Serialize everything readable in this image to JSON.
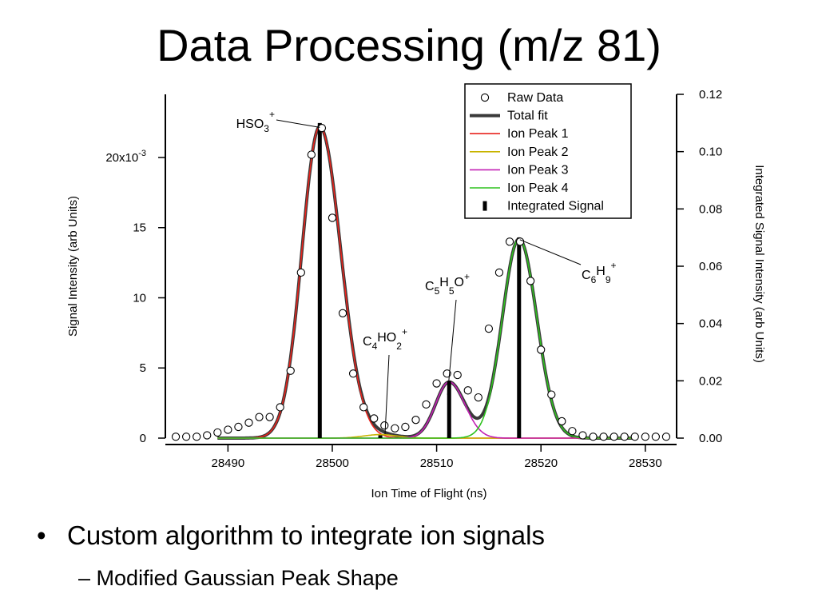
{
  "slide": {
    "title": "Data Processing (m/z 81)",
    "bullet": "Custom algorithm to integrate ion signals",
    "sub_bullet": "Modified Gaussian Peak Shape",
    "bullet_marker": "•",
    "sub_marker": "–"
  },
  "chart_data": {
    "type": "line",
    "title": "",
    "xlabel": "Ion Time of Flight (ns)",
    "ylabel": "Signal Intensity (arb Units)",
    "y2label": "Integrated Signal Intensity (arb Units)",
    "xlim": [
      28484,
      28533
    ],
    "ylim": [
      0,
      0.0245
    ],
    "y2lim": [
      0,
      0.12
    ],
    "x_ticks": [
      28490,
      28500,
      28510,
      28520,
      28530
    ],
    "x_tick_labels": [
      "28490",
      "28500",
      "28510",
      "28520",
      "28530"
    ],
    "y_ticks": [
      0,
      0.005,
      0.01,
      0.015,
      0.02
    ],
    "y_tick_labels": [
      "0",
      "5",
      "10",
      "15",
      "20x10"
    ],
    "y_tick_exponent": "-3",
    "y2_ticks": [
      0,
      0.02,
      0.04,
      0.06,
      0.08,
      0.1,
      0.12
    ],
    "y2_tick_labels": [
      "0.00",
      "0.02",
      "0.04",
      "0.06",
      "0.08",
      "0.10",
      "0.12"
    ],
    "legend_position": "top-right",
    "legend": [
      {
        "label": "Raw Data",
        "kind": "marker"
      },
      {
        "label": "Total fit",
        "kind": "thick"
      },
      {
        "label": "Ion Peak 1",
        "kind": "line",
        "color": "#e8231c"
      },
      {
        "label": "Ion Peak 2",
        "kind": "line",
        "color": "#c8b400"
      },
      {
        "label": "Ion Peak 3",
        "kind": "line",
        "color": "#c320b4"
      },
      {
        "label": "Ion Peak 4",
        "kind": "line",
        "color": "#2ec21e"
      },
      {
        "label": "Integrated Signal",
        "kind": "bar"
      }
    ],
    "raw_data": {
      "x": [
        28485,
        28486,
        28487,
        28488,
        28489,
        28490,
        28491,
        28492,
        28493,
        28494,
        28495,
        28496,
        28497,
        28498,
        28499,
        28500,
        28501,
        28502,
        28503,
        28504,
        28505,
        28506,
        28507,
        28508,
        28509,
        28510,
        28511,
        28512,
        28513,
        28514,
        28515,
        28516,
        28517,
        28518,
        28519,
        28520,
        28521,
        28522,
        28523,
        28524,
        28525,
        28526,
        28527,
        28528,
        28529,
        28530,
        28531,
        28532
      ],
      "y": [
        0.0001,
        0.0001,
        0.0001,
        0.0002,
        0.0004,
        0.0006,
        0.0008,
        0.0011,
        0.0015,
        0.0015,
        0.0022,
        0.0048,
        0.0118,
        0.0202,
        0.0221,
        0.0157,
        0.0089,
        0.0046,
        0.0022,
        0.0014,
        0.0009,
        0.0007,
        0.0008,
        0.0013,
        0.0024,
        0.0039,
        0.0046,
        0.0045,
        0.0034,
        0.0029,
        0.0078,
        0.0118,
        0.014,
        0.014,
        0.0112,
        0.0063,
        0.0031,
        0.0012,
        0.0005,
        0.0002,
        0.0001,
        0.0001,
        0.0001,
        0.0001,
        0.0001,
        0.0001,
        0.0001,
        0.0001
      ]
    },
    "peaks": [
      {
        "name": "Ion Peak 1",
        "label": "HSO3+",
        "center": 28498.8,
        "height": 0.0222,
        "sigma_left": 1.7,
        "sigma_right": 2.0,
        "color": "#e8231c",
        "integrated": 0.11
      },
      {
        "name": "Ion Peak 2",
        "label": "C4HO2+",
        "center": 28504.6,
        "height": 0.00025,
        "sigma_left": 1.6,
        "sigma_right": 1.6,
        "color": "#c8b400",
        "integrated": 0.001
      },
      {
        "name": "Ion Peak 3",
        "label": "C5H5O+",
        "center": 28511.2,
        "height": 0.004,
        "sigma_left": 1.3,
        "sigma_right": 1.5,
        "color": "#c320b4",
        "integrated": 0.02
      },
      {
        "name": "Ion Peak 4",
        "label": "C6H9+",
        "center": 28517.9,
        "height": 0.0142,
        "sigma_left": 1.6,
        "sigma_right": 1.7,
        "color": "#2ec21e",
        "integrated": 0.07
      }
    ],
    "annotations": [
      {
        "base": "HSO",
        "sub": "3",
        "sup": "+"
      },
      {
        "base": "C",
        "sub": "4",
        "mid": "HO",
        "sub2": "2",
        "sup": "+"
      },
      {
        "base": "C",
        "sub": "5",
        "mid": "H",
        "sub2": "5",
        "mid2": "O",
        "sup": "+"
      },
      {
        "base": "C",
        "sub": "6",
        "mid": "H",
        "sub2": "9",
        "sup": "+"
      }
    ]
  }
}
